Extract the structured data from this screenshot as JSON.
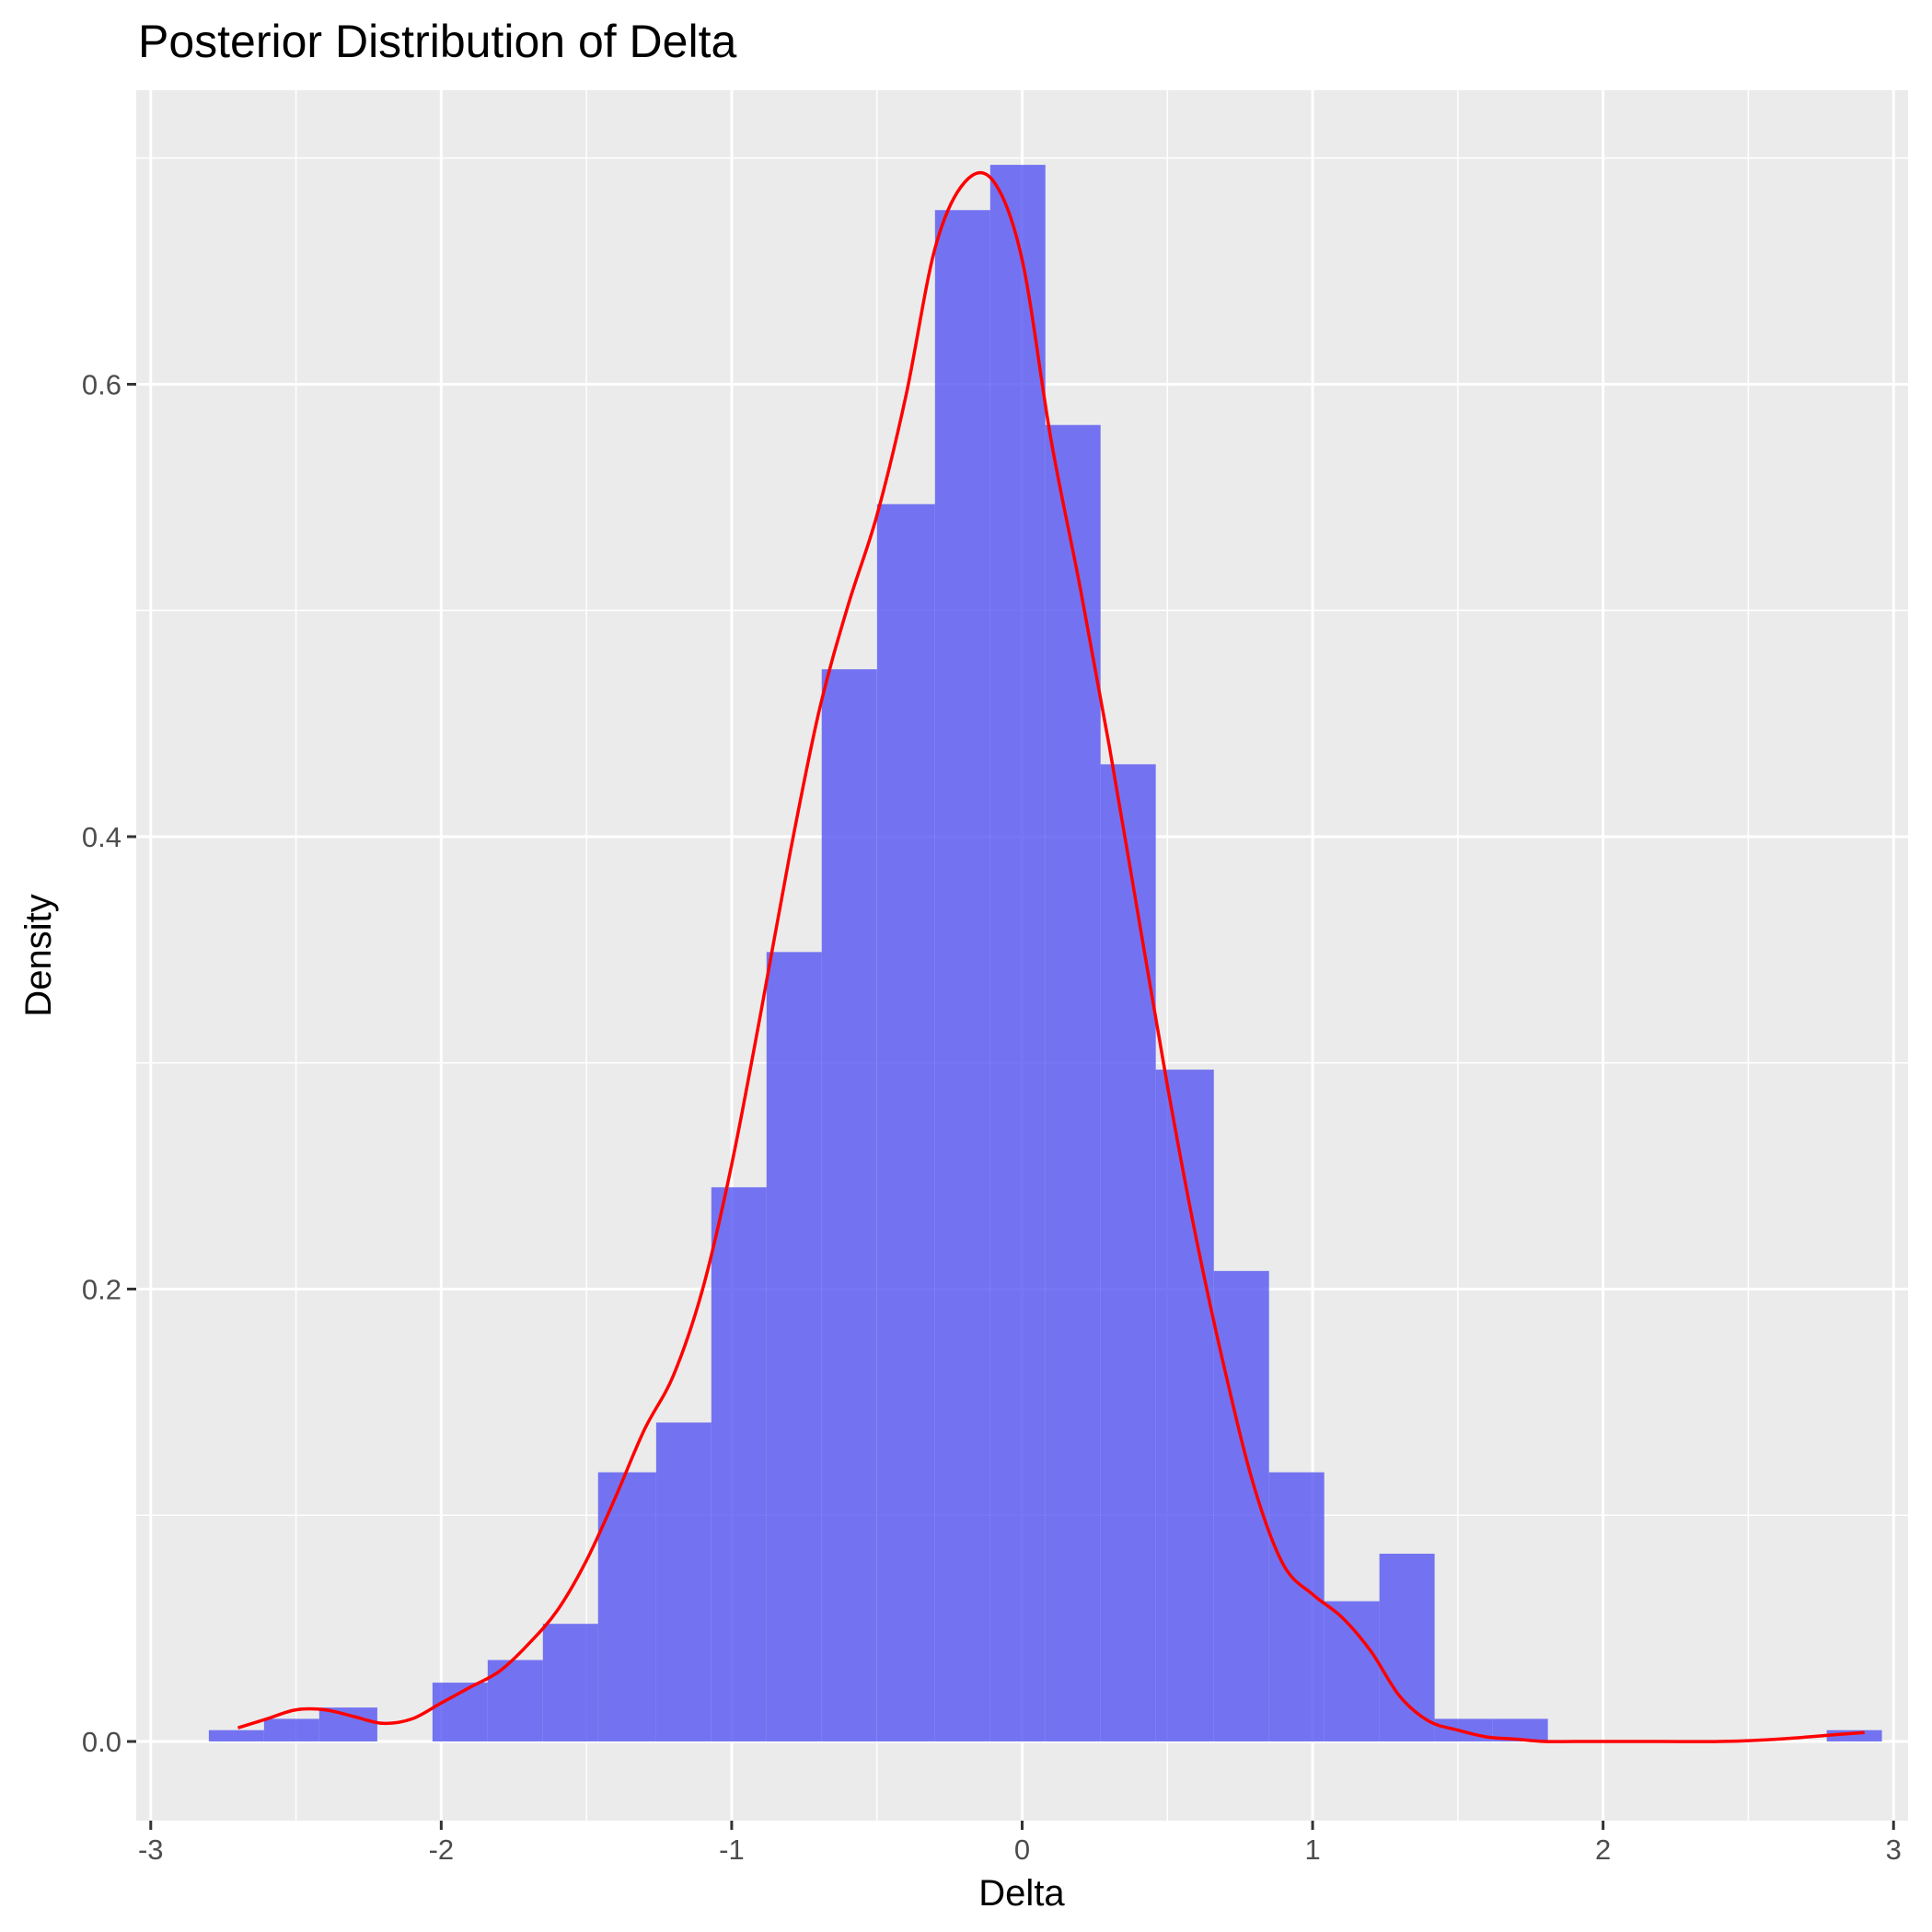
{
  "chart_data": {
    "type": "bar",
    "title": "Posterior Distribution of Delta",
    "xlabel": "Delta",
    "ylabel": "Density",
    "xlim": [
      -3.05,
      3.05
    ],
    "ylim": [
      -0.035,
      0.73
    ],
    "x_ticks": [
      -3,
      -2,
      -1,
      0,
      1,
      2,
      3
    ],
    "x_tick_labels": [
      "-3",
      "-2",
      "-1",
      "0",
      "1",
      "2",
      "3"
    ],
    "y_ticks": [
      0.0,
      0.2,
      0.4,
      0.6
    ],
    "y_tick_labels": [
      "0.0",
      "0.2",
      "0.4",
      "0.6"
    ],
    "grid": true,
    "histogram": {
      "name": "histogram",
      "bin_edges": [
        -2.8,
        -2.61,
        -2.42,
        -2.22,
        -2.03,
        -1.84,
        -1.65,
        -1.46,
        -1.26,
        -1.07,
        -0.88,
        -0.69,
        -0.5,
        -0.3,
        -0.11,
        0.08,
        0.27,
        0.46,
        0.66,
        0.85,
        1.04,
        1.23,
        1.42,
        1.62,
        1.81,
        2.0,
        2.19,
        2.38,
        2.58,
        2.77,
        2.96
      ],
      "values": [
        0.005,
        0.01,
        0.015,
        0.0,
        0.026,
        0.036,
        0.052,
        0.119,
        0.141,
        0.245,
        0.349,
        0.474,
        0.547,
        0.677,
        0.697,
        0.582,
        0.432,
        0.297,
        0.208,
        0.119,
        0.062,
        0.083,
        0.01,
        0.01,
        0.0,
        0.0,
        0.0,
        0.0,
        0.0,
        0.005
      ],
      "color": "#5555f2",
      "opacity": 0.8
    },
    "density": {
      "name": "density",
      "color": "#ff0000",
      "x": [
        -2.7,
        -2.6,
        -2.5,
        -2.4,
        -2.3,
        -2.2,
        -2.1,
        -2.0,
        -1.9,
        -1.8,
        -1.7,
        -1.6,
        -1.5,
        -1.4,
        -1.3,
        -1.2,
        -1.1,
        -1.0,
        -0.9,
        -0.8,
        -0.7,
        -0.6,
        -0.5,
        -0.4,
        -0.3,
        -0.2,
        -0.1,
        0.0,
        0.1,
        0.2,
        0.3,
        0.4,
        0.5,
        0.6,
        0.7,
        0.8,
        0.9,
        1.0,
        1.1,
        1.2,
        1.3,
        1.4,
        1.5,
        1.6,
        1.7,
        1.8,
        1.9,
        2.0,
        2.2,
        2.4,
        2.6,
        2.8,
        2.9
      ],
      "y": [
        0.006,
        0.01,
        0.014,
        0.014,
        0.011,
        0.008,
        0.01,
        0.017,
        0.024,
        0.031,
        0.043,
        0.058,
        0.08,
        0.108,
        0.138,
        0.162,
        0.2,
        0.255,
        0.322,
        0.392,
        0.455,
        0.502,
        0.542,
        0.595,
        0.66,
        0.689,
        0.69,
        0.655,
        0.575,
        0.51,
        0.44,
        0.365,
        0.29,
        0.222,
        0.163,
        0.112,
        0.078,
        0.065,
        0.055,
        0.04,
        0.02,
        0.009,
        0.005,
        0.002,
        0.001,
        0.0,
        0.0,
        0.0,
        0.0,
        0.0,
        0.001,
        0.003,
        0.004
      ]
    }
  }
}
